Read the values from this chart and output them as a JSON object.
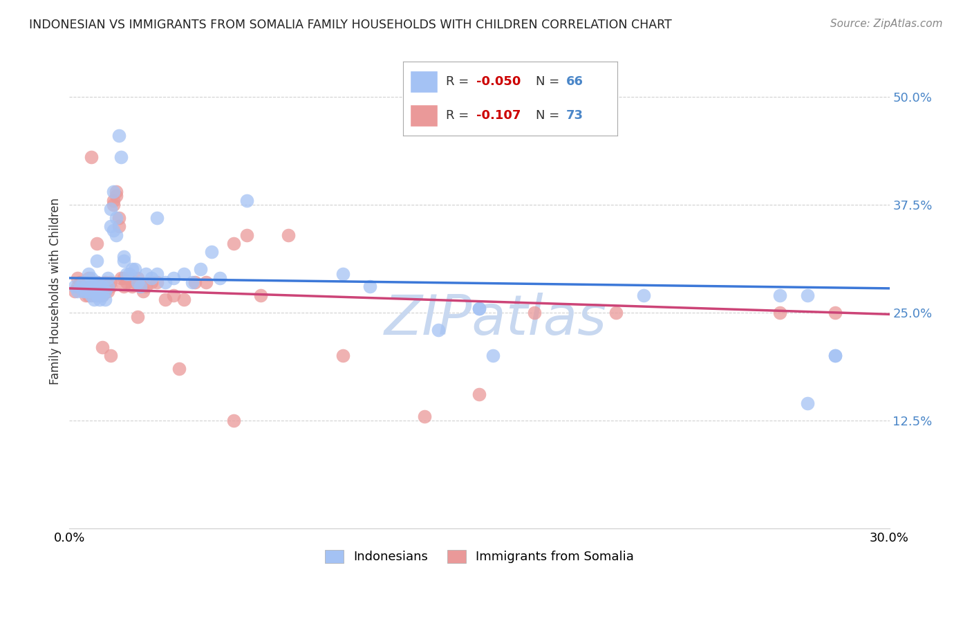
{
  "title": "INDONESIAN VS IMMIGRANTS FROM SOMALIA FAMILY HOUSEHOLDS WITH CHILDREN CORRELATION CHART",
  "source": "Source: ZipAtlas.com",
  "ylabel": "Family Households with Children",
  "xlim": [
    0.0,
    0.3
  ],
  "ylim": [
    0.0,
    0.55
  ],
  "yticks": [
    0.125,
    0.25,
    0.375,
    0.5
  ],
  "ytick_labels": [
    "12.5%",
    "25.0%",
    "37.5%",
    "50.0%"
  ],
  "xticks": [
    0.0,
    0.05,
    0.1,
    0.15,
    0.2,
    0.25,
    0.3
  ],
  "xtick_labels": [
    "0.0%",
    "",
    "",
    "",
    "",
    "",
    "30.0%"
  ],
  "blue_color": "#a4c2f4",
  "pink_color": "#ea9999",
  "blue_line_color": "#3c78d8",
  "pink_line_color": "#cc4477",
  "watermark": "ZIPatlas",
  "watermark_color": "#c8d8f0",
  "blue_line_start_y": 0.29,
  "blue_line_end_y": 0.278,
  "pink_line_start_y": 0.278,
  "pink_line_end_y": 0.248,
  "indonesians_x": [
    0.002,
    0.003,
    0.004,
    0.005,
    0.005,
    0.006,
    0.006,
    0.007,
    0.007,
    0.008,
    0.008,
    0.008,
    0.009,
    0.009,
    0.01,
    0.01,
    0.01,
    0.011,
    0.011,
    0.012,
    0.012,
    0.013,
    0.013,
    0.014,
    0.014,
    0.015,
    0.015,
    0.016,
    0.016,
    0.017,
    0.018,
    0.019,
    0.02,
    0.02,
    0.021,
    0.022,
    0.023,
    0.024,
    0.025,
    0.026,
    0.028,
    0.03,
    0.032,
    0.035,
    0.038,
    0.042,
    0.045,
    0.048,
    0.052,
    0.055,
    0.065,
    0.1,
    0.11,
    0.15,
    0.26,
    0.28,
    0.01,
    0.017,
    0.032,
    0.15,
    0.21,
    0.27,
    0.135,
    0.155,
    0.27,
    0.28
  ],
  "indonesians_y": [
    0.28,
    0.275,
    0.28,
    0.275,
    0.285,
    0.275,
    0.28,
    0.275,
    0.295,
    0.27,
    0.28,
    0.29,
    0.265,
    0.28,
    0.27,
    0.275,
    0.285,
    0.265,
    0.28,
    0.27,
    0.28,
    0.265,
    0.275,
    0.28,
    0.29,
    0.37,
    0.35,
    0.39,
    0.345,
    0.34,
    0.455,
    0.43,
    0.315,
    0.31,
    0.295,
    0.295,
    0.3,
    0.3,
    0.285,
    0.28,
    0.295,
    0.29,
    0.295,
    0.285,
    0.29,
    0.295,
    0.285,
    0.3,
    0.32,
    0.29,
    0.38,
    0.295,
    0.28,
    0.255,
    0.27,
    0.2,
    0.31,
    0.36,
    0.36,
    0.255,
    0.27,
    0.27,
    0.23,
    0.2,
    0.145,
    0.2
  ],
  "somalia_x": [
    0.002,
    0.003,
    0.003,
    0.004,
    0.004,
    0.005,
    0.005,
    0.006,
    0.006,
    0.006,
    0.007,
    0.007,
    0.007,
    0.008,
    0.008,
    0.008,
    0.009,
    0.009,
    0.01,
    0.01,
    0.01,
    0.011,
    0.011,
    0.012,
    0.012,
    0.013,
    0.013,
    0.014,
    0.014,
    0.015,
    0.015,
    0.016,
    0.016,
    0.017,
    0.017,
    0.018,
    0.018,
    0.019,
    0.02,
    0.02,
    0.021,
    0.022,
    0.023,
    0.024,
    0.025,
    0.026,
    0.027,
    0.028,
    0.03,
    0.032,
    0.035,
    0.038,
    0.042,
    0.046,
    0.05,
    0.06,
    0.065,
    0.07,
    0.08,
    0.1,
    0.13,
    0.15,
    0.17,
    0.2,
    0.26,
    0.28,
    0.008,
    0.01,
    0.012,
    0.015,
    0.025,
    0.04,
    0.06
  ],
  "somalia_y": [
    0.275,
    0.28,
    0.29,
    0.28,
    0.285,
    0.28,
    0.285,
    0.27,
    0.275,
    0.285,
    0.27,
    0.28,
    0.29,
    0.275,
    0.28,
    0.285,
    0.27,
    0.275,
    0.27,
    0.28,
    0.285,
    0.27,
    0.275,
    0.27,
    0.28,
    0.275,
    0.285,
    0.275,
    0.28,
    0.28,
    0.285,
    0.375,
    0.38,
    0.385,
    0.39,
    0.35,
    0.36,
    0.29,
    0.28,
    0.29,
    0.285,
    0.29,
    0.28,
    0.285,
    0.29,
    0.28,
    0.275,
    0.28,
    0.285,
    0.285,
    0.265,
    0.27,
    0.265,
    0.285,
    0.285,
    0.33,
    0.34,
    0.27,
    0.34,
    0.2,
    0.13,
    0.155,
    0.25,
    0.25,
    0.25,
    0.25,
    0.43,
    0.33,
    0.21,
    0.2,
    0.245,
    0.185,
    0.125
  ]
}
